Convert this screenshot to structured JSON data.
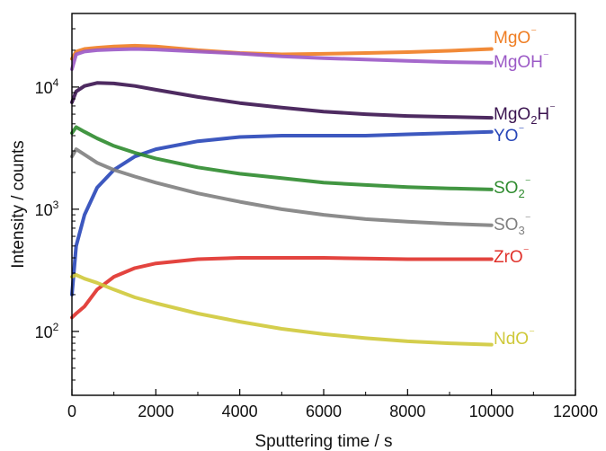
{
  "chart_data": {
    "type": "line",
    "xlabel": "Sputtering time / s",
    "ylabel": "Intensity / counts",
    "xlim": [
      0,
      12000
    ],
    "ylim": [
      30,
      40000
    ],
    "y_scale": "log",
    "grid": false,
    "x_ticks": [
      0,
      2000,
      4000,
      6000,
      8000,
      10000,
      12000
    ],
    "x_tick_labels": [
      "0",
      "2000",
      "4000",
      "6000",
      "8000",
      "10000",
      "12000"
    ],
    "y_major_ticks": [
      {
        "value": 100,
        "base": "10",
        "exp": "2"
      },
      {
        "value": 1000,
        "base": "10",
        "exp": "3"
      },
      {
        "value": 10000,
        "base": "10",
        "exp": "4"
      }
    ],
    "x": [
      0,
      100,
      300,
      600,
      1000,
      1500,
      2000,
      3000,
      4000,
      5000,
      6000,
      7000,
      8000,
      9000,
      10000
    ],
    "series": [
      {
        "name": "MgO⁻",
        "label_parts": [
          [
            "MgO",
            ""
          ],
          [
            "⁻",
            "sup"
          ]
        ],
        "color": "#ef7d22",
        "values": [
          17000,
          19500,
          20500,
          21000,
          21500,
          21800,
          21500,
          20000,
          19000,
          18500,
          18700,
          19000,
          19300,
          19800,
          20500
        ]
      },
      {
        "name": "MgOH⁻",
        "label_parts": [
          [
            "MgOH",
            ""
          ],
          [
            "⁻",
            "sup"
          ]
        ],
        "color": "#9b59c6",
        "values": [
          14000,
          18500,
          19500,
          20000,
          20300,
          20500,
          20300,
          19500,
          18800,
          17800,
          17200,
          16800,
          16400,
          16000,
          15800
        ]
      },
      {
        "name": "MgO₂H⁻",
        "label_parts": [
          [
            "MgO",
            ""
          ],
          [
            "2",
            "sub"
          ],
          [
            "H",
            ""
          ],
          [
            "⁻",
            "sup"
          ]
        ],
        "color": "#3b1450",
        "values": [
          7500,
          9200,
          10200,
          10800,
          10700,
          10200,
          9500,
          8300,
          7400,
          6800,
          6300,
          6000,
          5800,
          5700,
          5600
        ]
      },
      {
        "name": "YO⁻",
        "label_parts": [
          [
            "YO",
            ""
          ],
          [
            "⁻",
            "sup"
          ]
        ],
        "color": "#2846b8",
        "values": [
          200,
          500,
          900,
          1500,
          2100,
          2700,
          3100,
          3600,
          3900,
          4000,
          4000,
          4000,
          4100,
          4200,
          4300
        ]
      },
      {
        "name": "SO₂⁻",
        "label_parts": [
          [
            "SO",
            ""
          ],
          [
            "2",
            "sub"
          ],
          [
            "⁻",
            "sup"
          ]
        ],
        "color": "#2e8b2e",
        "values": [
          4200,
          4700,
          4300,
          3800,
          3300,
          2900,
          2600,
          2200,
          1950,
          1800,
          1650,
          1580,
          1520,
          1480,
          1450
        ]
      },
      {
        "name": "SO₃⁻",
        "label_parts": [
          [
            "SO",
            ""
          ],
          [
            "3",
            "sub"
          ],
          [
            "⁻",
            "sup"
          ]
        ],
        "color": "#7f7f7f",
        "values": [
          2700,
          3100,
          2800,
          2400,
          2100,
          1850,
          1650,
          1350,
          1150,
          1000,
          900,
          830,
          790,
          760,
          740
        ]
      },
      {
        "name": "ZrO⁻",
        "label_parts": [
          [
            "ZrO",
            ""
          ],
          [
            "⁻",
            "sup"
          ]
        ],
        "color": "#e0302a",
        "values": [
          130,
          140,
          160,
          220,
          280,
          330,
          360,
          390,
          400,
          400,
          400,
          395,
          390,
          390,
          390
        ]
      },
      {
        "name": "NdO⁻",
        "label_parts": [
          [
            "NdO",
            ""
          ],
          [
            "⁻",
            "sup"
          ]
        ],
        "color": "#cfc93a",
        "values": [
          280,
          290,
          270,
          250,
          220,
          190,
          170,
          140,
          120,
          105,
          95,
          88,
          83,
          80,
          78
        ]
      }
    ]
  }
}
